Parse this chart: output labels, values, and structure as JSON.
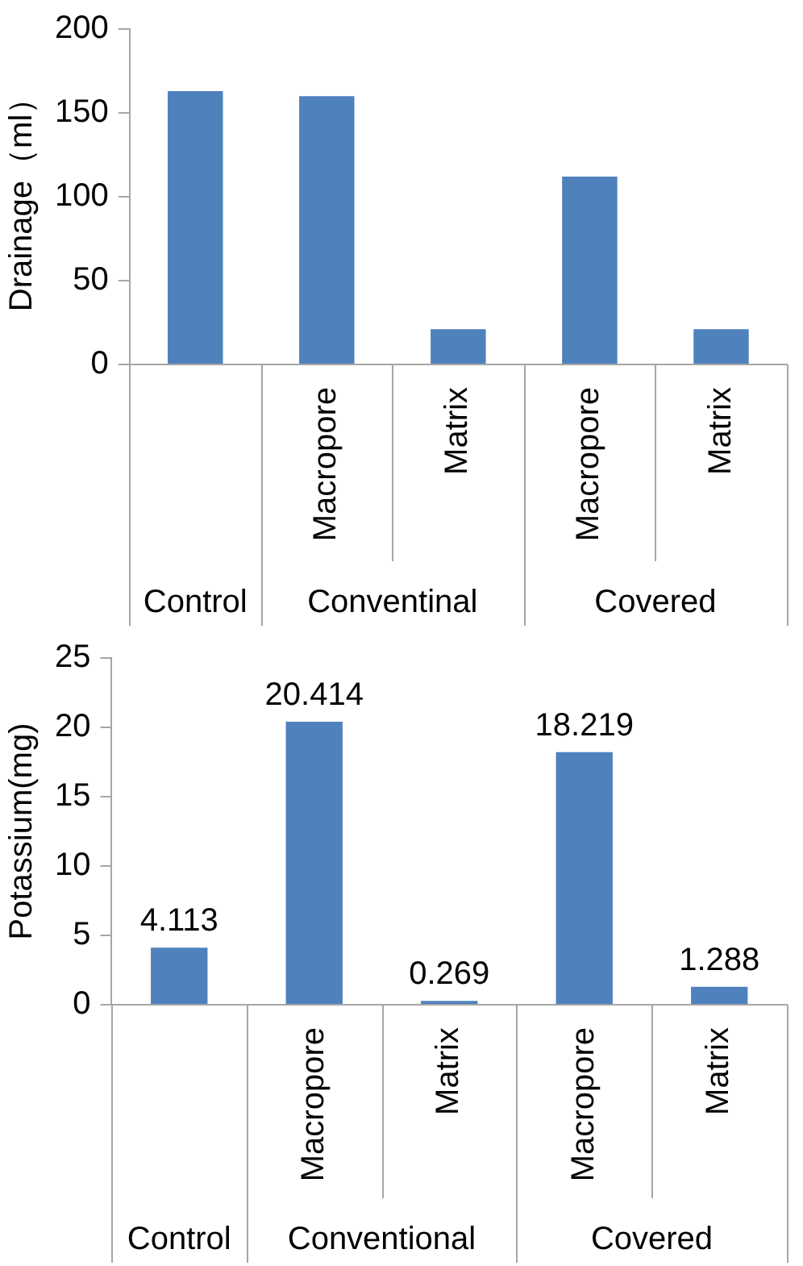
{
  "chart_data": [
    {
      "type": "bar",
      "ylabel": "Drainage（ml）",
      "categories": [
        null,
        "Macropore",
        "Matrix",
        "Macropore",
        "Matrix"
      ],
      "values": [
        163,
        160,
        21,
        112,
        21
      ],
      "color": "#4f81bd",
      "ylim": [
        0,
        200
      ],
      "yticks": [
        0,
        50,
        100,
        150,
        200
      ],
      "annotations": [
        "Control",
        "Conventinal",
        "Covered"
      ]
    },
    {
      "type": "bar",
      "ylabel": "Potassium(mg)",
      "categories": [
        null,
        "Macropore",
        "Matrix",
        "Macropore",
        "Matrix"
      ],
      "values": [
        4.113,
        20.414,
        0.269,
        18.219,
        1.288
      ],
      "color": "#4f81bd",
      "ylim": [
        0,
        25
      ],
      "yticks": [
        0,
        5,
        10,
        15,
        20,
        25
      ],
      "data_labels": true,
      "annotations": [
        "Control",
        "Conventional",
        "Covered"
      ]
    }
  ]
}
